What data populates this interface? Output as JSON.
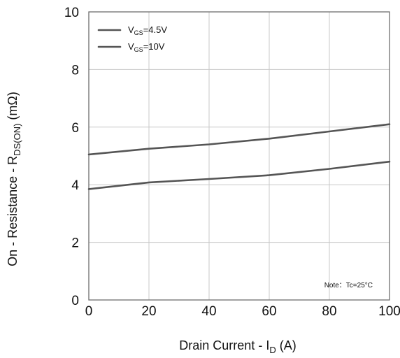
{
  "chart_data": {
    "type": "line",
    "xlabel": {
      "main": "Drain Current - I",
      "sub": "D",
      "tail": " (A)"
    },
    "ylabel": {
      "main": "On - Resistance - R",
      "sub": "DS(ON)",
      "tail": " (mΩ)"
    },
    "xlim": [
      0,
      100
    ],
    "ylim": [
      0,
      10
    ],
    "xticks": [
      0,
      20,
      40,
      60,
      80,
      100
    ],
    "yticks": [
      0,
      2,
      4,
      6,
      8,
      10
    ],
    "grid": true,
    "legend_position": "top-left",
    "series": [
      {
        "name": {
          "main": "V",
          "sub": "GS",
          "tail": "=4.5V"
        },
        "color": "#555555",
        "x": [
          0,
          20,
          40,
          60,
          80,
          100
        ],
        "y": [
          5.05,
          5.25,
          5.4,
          5.6,
          5.85,
          6.1
        ]
      },
      {
        "name": {
          "main": "V",
          "sub": "GS",
          "tail": "=10V"
        },
        "color": "#555555",
        "x": [
          0,
          20,
          40,
          60,
          80,
          100
        ],
        "y": [
          3.85,
          4.08,
          4.2,
          4.33,
          4.55,
          4.8
        ]
      }
    ],
    "annotation": "Note：Tc=25°C"
  }
}
